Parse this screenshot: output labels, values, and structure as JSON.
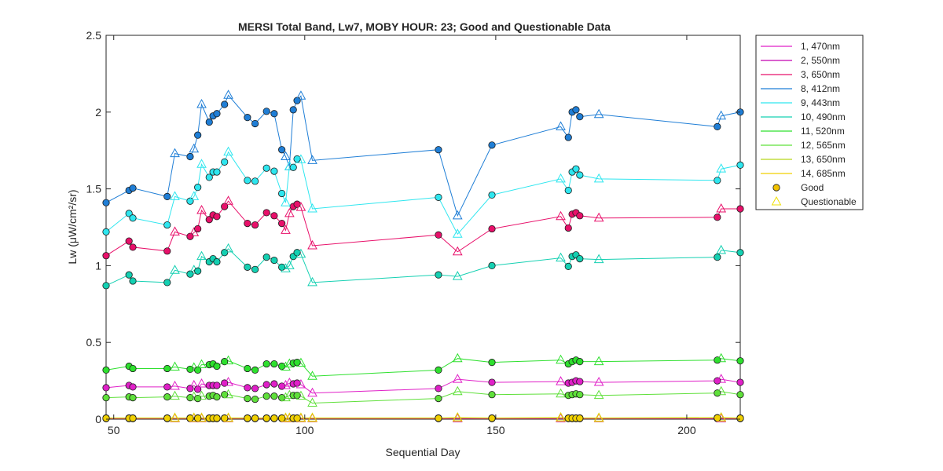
{
  "chart_data": {
    "type": "line",
    "title": "MERSI Total Band,  Lw7, MOBY HOUR: 23;  Good and Questionable Data",
    "xlabel": "Sequential Day",
    "ylabel": "Lw (μW/cm²/sr)",
    "xlim": [
      48,
      214
    ],
    "ylim": [
      0,
      2.5
    ],
    "xticks": [
      50,
      100,
      150,
      200
    ],
    "yticks": [
      0,
      0.5,
      1,
      1.5,
      2,
      2.5
    ],
    "grid": false,
    "legend_position": "outside-top-right",
    "x": [
      48,
      54,
      55,
      64,
      66,
      70,
      71,
      72,
      73,
      75,
      76,
      77,
      79,
      80,
      85,
      87,
      90,
      92,
      94,
      95,
      96,
      97,
      98,
      99,
      102,
      135,
      140,
      149,
      167,
      169,
      170,
      171,
      172,
      177,
      208,
      209,
      214
    ],
    "quality": [
      "G",
      "G",
      "G",
      "G",
      "Q",
      "G",
      "Q",
      "G",
      "Q",
      "G",
      "G",
      "G",
      "G",
      "Q",
      "G",
      "G",
      "G",
      "G",
      "G",
      "Q",
      "Q",
      "G",
      "G",
      "Q",
      "Q",
      "G",
      "Q",
      "G",
      "Q",
      "G",
      "G",
      "G",
      "G",
      "Q",
      "G",
      "Q",
      "G"
    ],
    "series": [
      {
        "name": "1, 470nm",
        "color": "#e020c8",
        "values": [
          0.205,
          0.22,
          0.21,
          0.21,
          0.215,
          0.2,
          0.22,
          0.195,
          0.23,
          0.22,
          0.22,
          0.22,
          0.235,
          0.24,
          0.205,
          0.2,
          0.225,
          0.23,
          0.215,
          0.22,
          0.235,
          0.23,
          0.235,
          0.225,
          0.17,
          0.2,
          0.26,
          0.24,
          0.245,
          0.235,
          0.24,
          0.25,
          0.245,
          0.24,
          0.25,
          0.26,
          0.24
        ]
      },
      {
        "name": "2, 550nm",
        "color": "#c400b0",
        "values": [
          0.004,
          0.004,
          0.004,
          0.004,
          0.004,
          0.004,
          0.004,
          0.004,
          0.004,
          0.004,
          0.004,
          0.004,
          0.004,
          0.004,
          0.004,
          0.004,
          0.004,
          0.004,
          0.004,
          0.004,
          0.004,
          0.004,
          0.004,
          0.004,
          0.004,
          0.004,
          0.004,
          0.004,
          0.004,
          0.004,
          0.004,
          0.004,
          0.004,
          0.004,
          0.004,
          0.004,
          0.004
        ]
      },
      {
        "name": "3, 650nm",
        "color": "#e8106a",
        "values": [
          1.065,
          1.16,
          1.12,
          1.095,
          1.22,
          1.19,
          1.215,
          1.24,
          1.36,
          1.3,
          1.33,
          1.32,
          1.385,
          1.42,
          1.275,
          1.265,
          1.345,
          1.325,
          1.275,
          1.23,
          1.34,
          1.385,
          1.4,
          1.38,
          1.13,
          1.2,
          1.09,
          1.24,
          1.32,
          1.245,
          1.335,
          1.345,
          1.325,
          1.31,
          1.315,
          1.37,
          1.37
        ]
      },
      {
        "name": "8, 412nm",
        "color": "#1f7ed6",
        "values": [
          1.41,
          1.49,
          1.505,
          1.45,
          1.73,
          1.71,
          1.76,
          1.85,
          2.05,
          1.935,
          1.975,
          1.99,
          2.05,
          2.11,
          1.965,
          1.925,
          2.005,
          1.99,
          1.755,
          1.71,
          1.645,
          2.015,
          2.075,
          2.105,
          1.685,
          1.755,
          1.325,
          1.785,
          1.905,
          1.835,
          2.0,
          2.015,
          1.97,
          1.985,
          1.905,
          1.975,
          2.0
        ]
      },
      {
        "name": "9, 443nm",
        "color": "#2ee6ef",
        "values": [
          1.22,
          1.34,
          1.31,
          1.265,
          1.45,
          1.42,
          1.45,
          1.51,
          1.66,
          1.575,
          1.61,
          1.61,
          1.675,
          1.74,
          1.555,
          1.55,
          1.635,
          1.615,
          1.47,
          1.41,
          1.645,
          1.64,
          1.695,
          1.69,
          1.37,
          1.445,
          1.205,
          1.46,
          1.565,
          1.49,
          1.61,
          1.63,
          1.59,
          1.565,
          1.555,
          1.63,
          1.655
        ]
      },
      {
        "name": "10, 490nm",
        "color": "#14d0b2",
        "values": [
          0.87,
          0.94,
          0.9,
          0.89,
          0.97,
          0.945,
          0.97,
          0.965,
          1.06,
          1.025,
          1.045,
          1.025,
          1.085,
          1.11,
          0.99,
          0.975,
          1.055,
          1.035,
          0.99,
          0.98,
          1.0,
          1.06,
          1.085,
          1.075,
          0.89,
          0.94,
          0.93,
          1.0,
          1.05,
          0.995,
          1.06,
          1.07,
          1.045,
          1.04,
          1.055,
          1.1,
          1.085
        ]
      },
      {
        "name": "11, 520nm",
        "color": "#2ee02e",
        "values": [
          0.32,
          0.345,
          0.33,
          0.33,
          0.34,
          0.325,
          0.335,
          0.32,
          0.355,
          0.355,
          0.36,
          0.345,
          0.375,
          0.38,
          0.33,
          0.32,
          0.36,
          0.36,
          0.345,
          0.34,
          0.36,
          0.365,
          0.37,
          0.365,
          0.28,
          0.32,
          0.395,
          0.37,
          0.385,
          0.36,
          0.375,
          0.385,
          0.375,
          0.375,
          0.385,
          0.395,
          0.38
        ]
      },
      {
        "name": "12, 565nm",
        "color": "#5fe03a",
        "values": [
          0.14,
          0.145,
          0.14,
          0.145,
          0.15,
          0.14,
          0.145,
          0.135,
          0.15,
          0.15,
          0.155,
          0.145,
          0.16,
          0.16,
          0.135,
          0.13,
          0.15,
          0.15,
          0.14,
          0.14,
          0.155,
          0.155,
          0.155,
          0.15,
          0.105,
          0.135,
          0.18,
          0.16,
          0.165,
          0.155,
          0.16,
          0.165,
          0.16,
          0.155,
          0.17,
          0.18,
          0.16
        ]
      },
      {
        "name": "13, 650nm",
        "color": "#b8d81a",
        "values": [
          0.008,
          0.008,
          0.008,
          0.008,
          0.008,
          0.008,
          0.008,
          0.008,
          0.008,
          0.008,
          0.008,
          0.008,
          0.008,
          0.008,
          0.008,
          0.008,
          0.008,
          0.008,
          0.008,
          0.008,
          0.008,
          0.008,
          0.008,
          0.008,
          0.008,
          0.008,
          0.01,
          0.008,
          0.01,
          0.008,
          0.008,
          0.008,
          0.008,
          0.008,
          0.01,
          0.01,
          0.008
        ]
      },
      {
        "name": "14, 685nm",
        "color": "#f0d000",
        "values": [
          0.006,
          0.006,
          0.006,
          0.006,
          0.006,
          0.006,
          0.006,
          0.006,
          0.006,
          0.006,
          0.006,
          0.006,
          0.006,
          0.006,
          0.006,
          0.006,
          0.006,
          0.006,
          0.006,
          0.006,
          0.006,
          0.006,
          0.006,
          0.006,
          0.006,
          0.006,
          0.008,
          0.006,
          0.008,
          0.006,
          0.006,
          0.006,
          0.006,
          0.006,
          0.008,
          0.008,
          0.006
        ]
      }
    ],
    "legend_markers": [
      {
        "label": "Good",
        "marker": "circle",
        "color": "#f2c200"
      },
      {
        "label": "Questionable",
        "marker": "triangle",
        "color": "#f0e000"
      }
    ]
  }
}
